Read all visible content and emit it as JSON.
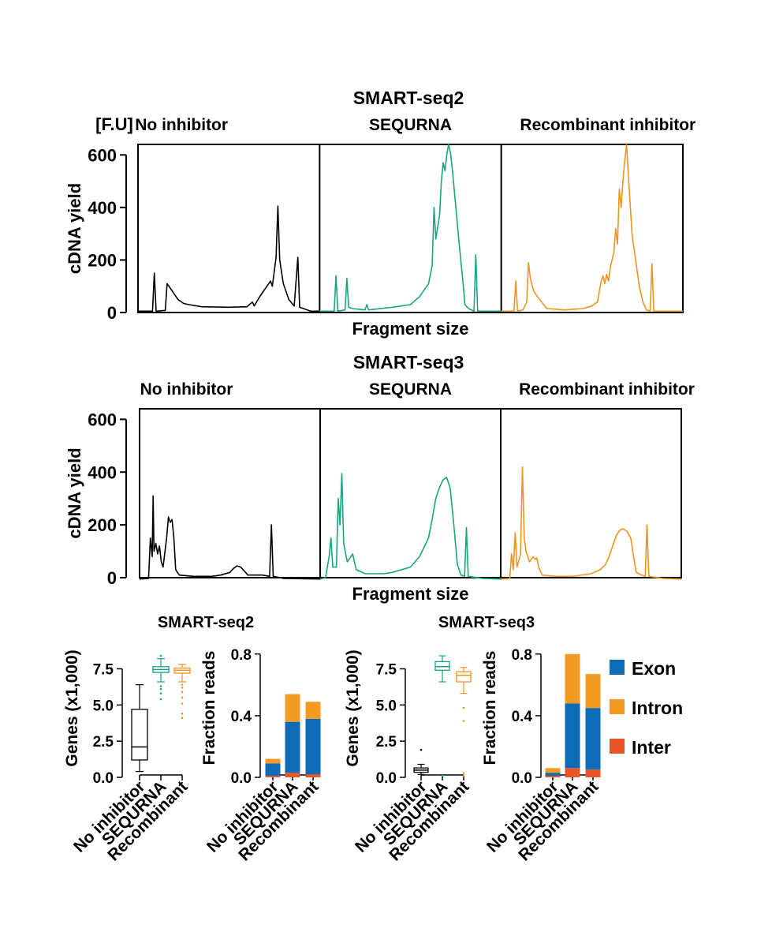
{
  "figure": {
    "top_title": "SMART-seq2",
    "middle_title": "SMART-seq3",
    "fu_label": "[F.U]"
  },
  "colors": {
    "No inhibitor": "#000000",
    "SEQURNA": "#1aa57f",
    "Recombinant": "#f0941e",
    "Exon": "#0e6cb6",
    "Intron": "#f39a22",
    "Inter": "#e8562a"
  },
  "chart_data": [
    {
      "id": "ss2-trace",
      "type": "line",
      "title": "SMART-seq2",
      "xlabel": "Fragment size",
      "ylabel": "cDNA yield",
      "yunit": "[F.U]",
      "ylim": [
        0,
        640
      ],
      "yticks": [
        0,
        200,
        400,
        600
      ],
      "xlim": [
        0,
        100
      ],
      "panels": [
        {
          "label": "No inhibitor",
          "color_key": "No inhibitor",
          "points": [
            [
              0,
              5
            ],
            [
              8,
              5
            ],
            [
              9,
              150
            ],
            [
              10,
              5
            ],
            [
              15,
              8
            ],
            [
              16,
              110
            ],
            [
              18,
              90
            ],
            [
              22,
              50
            ],
            [
              25,
              35
            ],
            [
              28,
              30
            ],
            [
              35,
              22
            ],
            [
              50,
              20
            ],
            [
              60,
              22
            ],
            [
              63,
              40
            ],
            [
              64,
              25
            ],
            [
              67,
              60
            ],
            [
              70,
              90
            ],
            [
              73,
              120
            ],
            [
              74,
              100
            ],
            [
              76,
              210
            ],
            [
              77,
              405
            ],
            [
              78,
              200
            ],
            [
              80,
              110
            ],
            [
              83,
              50
            ],
            [
              86,
              25
            ],
            [
              88,
              210
            ],
            [
              89,
              20
            ],
            [
              95,
              5
            ],
            [
              100,
              5
            ]
          ]
        },
        {
          "label": "SEQURNA",
          "color_key": "SEQURNA",
          "points": [
            [
              0,
              5
            ],
            [
              8,
              5
            ],
            [
              9,
              140
            ],
            [
              10,
              5
            ],
            [
              14,
              10
            ],
            [
              15,
              130
            ],
            [
              16,
              20
            ],
            [
              18,
              15
            ],
            [
              25,
              10
            ],
            [
              26,
              30
            ],
            [
              27,
              10
            ],
            [
              40,
              20
            ],
            [
              50,
              30
            ],
            [
              55,
              60
            ],
            [
              60,
              110
            ],
            [
              62,
              180
            ],
            [
              63,
              400
            ],
            [
              64,
              280
            ],
            [
              66,
              370
            ],
            [
              67,
              500
            ],
            [
              68,
              570
            ],
            [
              69,
              540
            ],
            [
              70,
              600
            ],
            [
              71,
              640
            ],
            [
              72,
              610
            ],
            [
              73,
              550
            ],
            [
              75,
              400
            ],
            [
              77,
              250
            ],
            [
              79,
              110
            ],
            [
              80,
              30
            ],
            [
              82,
              15
            ],
            [
              85,
              5
            ],
            [
              86,
              220
            ],
            [
              87,
              5
            ],
            [
              100,
              5
            ]
          ]
        },
        {
          "label": "Recombinant inhibitor",
          "color_key": "Recombinant",
          "points": [
            [
              0,
              5
            ],
            [
              7,
              5
            ],
            [
              8,
              120
            ],
            [
              9,
              5
            ],
            [
              12,
              10
            ],
            [
              14,
              40
            ],
            [
              15,
              190
            ],
            [
              16,
              130
            ],
            [
              18,
              80
            ],
            [
              20,
              60
            ],
            [
              25,
              15
            ],
            [
              35,
              10
            ],
            [
              45,
              15
            ],
            [
              50,
              25
            ],
            [
              53,
              40
            ],
            [
              55,
              120
            ],
            [
              56,
              140
            ],
            [
              57,
              110
            ],
            [
              58,
              145
            ],
            [
              59,
              120
            ],
            [
              60,
              170
            ],
            [
              62,
              230
            ],
            [
              63,
              320
            ],
            [
              64,
              260
            ],
            [
              65,
              470
            ],
            [
              66,
              400
            ],
            [
              67,
              500
            ],
            [
              68,
              580
            ],
            [
              69,
              640
            ],
            [
              70,
              520
            ],
            [
              72,
              300
            ],
            [
              74,
              200
            ],
            [
              76,
              100
            ],
            [
              78,
              40
            ],
            [
              80,
              10
            ],
            [
              82,
              5
            ],
            [
              83,
              185
            ],
            [
              84,
              5
            ],
            [
              100,
              5
            ]
          ]
        }
      ]
    },
    {
      "id": "ss3-trace",
      "type": "line",
      "title": "SMART-seq3",
      "xlabel": "Fragment size",
      "ylabel": "cDNA yield",
      "ylim": [
        0,
        640
      ],
      "yticks": [
        0,
        200,
        400,
        600
      ],
      "xlim": [
        0,
        100
      ],
      "panels": [
        {
          "label": "No inhibitor",
          "color_key": "No inhibitor",
          "points": [
            [
              0,
              -5
            ],
            [
              5,
              -3
            ],
            [
              6,
              150
            ],
            [
              7,
              80
            ],
            [
              7.5,
              310
            ],
            [
              8,
              100
            ],
            [
              9,
              130
            ],
            [
              10,
              90
            ],
            [
              11,
              120
            ],
            [
              12,
              60
            ],
            [
              13,
              40
            ],
            [
              15,
              150
            ],
            [
              16,
              230
            ],
            [
              17,
              210
            ],
            [
              18,
              220
            ],
            [
              19,
              150
            ],
            [
              20,
              30
            ],
            [
              22,
              10
            ],
            [
              30,
              5
            ],
            [
              40,
              5
            ],
            [
              45,
              10
            ],
            [
              50,
              20
            ],
            [
              52,
              35
            ],
            [
              54,
              45
            ],
            [
              56,
              40
            ],
            [
              58,
              25
            ],
            [
              60,
              10
            ],
            [
              68,
              10
            ],
            [
              72,
              5
            ],
            [
              73,
              200
            ],
            [
              74,
              5
            ],
            [
              80,
              -3
            ],
            [
              100,
              -5
            ]
          ]
        },
        {
          "label": "SEQURNA",
          "color_key": "SEQURNA",
          "points": [
            [
              0,
              -5
            ],
            [
              3,
              0
            ],
            [
              5,
              80
            ],
            [
              6,
              150
            ],
            [
              7,
              40
            ],
            [
              9,
              40
            ],
            [
              10,
              300
            ],
            [
              11,
              200
            ],
            [
              12,
              395
            ],
            [
              13,
              130
            ],
            [
              15,
              60
            ],
            [
              18,
              90
            ],
            [
              20,
              30
            ],
            [
              25,
              15
            ],
            [
              35,
              15
            ],
            [
              40,
              20
            ],
            [
              50,
              40
            ],
            [
              55,
              80
            ],
            [
              60,
              150
            ],
            [
              62,
              220
            ],
            [
              64,
              300
            ],
            [
              66,
              340
            ],
            [
              68,
              370
            ],
            [
              70,
              380
            ],
            [
              72,
              340
            ],
            [
              74,
              200
            ],
            [
              76,
              50
            ],
            [
              78,
              10
            ],
            [
              80,
              5
            ],
            [
              81,
              190
            ],
            [
              82,
              5
            ],
            [
              90,
              -3
            ],
            [
              100,
              -5
            ]
          ]
        },
        {
          "label": "Recombinant inhibitor",
          "color_key": "Recombinant",
          "points": [
            [
              0,
              -5
            ],
            [
              5,
              -3
            ],
            [
              6,
              90
            ],
            [
              7,
              30
            ],
            [
              8,
              170
            ],
            [
              9,
              40
            ],
            [
              11,
              90
            ],
            [
              12,
              420
            ],
            [
              13,
              150
            ],
            [
              14,
              100
            ],
            [
              16,
              60
            ],
            [
              18,
              80
            ],
            [
              19,
              70
            ],
            [
              20,
              75
            ],
            [
              21,
              40
            ],
            [
              23,
              10
            ],
            [
              30,
              5
            ],
            [
              40,
              5
            ],
            [
              50,
              15
            ],
            [
              55,
              30
            ],
            [
              58,
              50
            ],
            [
              60,
              80
            ],
            [
              62,
              120
            ],
            [
              64,
              160
            ],
            [
              66,
              180
            ],
            [
              68,
              185
            ],
            [
              70,
              175
            ],
            [
              72,
              150
            ],
            [
              74,
              60
            ],
            [
              75,
              20
            ],
            [
              78,
              10
            ],
            [
              80,
              5
            ],
            [
              81,
              200
            ],
            [
              82,
              5
            ],
            [
              90,
              -3
            ],
            [
              100,
              -5
            ]
          ]
        }
      ]
    },
    {
      "id": "ss2-genes",
      "type": "box",
      "title": "SMART-seq2",
      "ylabel": "Genes (x1,000)",
      "ylim": [
        0,
        9
      ],
      "yticks": [
        "0.0",
        "2.5",
        "5.0",
        "7.5"
      ],
      "categories": [
        "No inhibitor",
        "SEQURNA",
        "Recombinant"
      ],
      "boxes": [
        {
          "min": 0.4,
          "q1": 1.2,
          "median": 2.1,
          "q3": 4.7,
          "max": 6.4,
          "outliers": []
        },
        {
          "min": 6.6,
          "q1": 7.25,
          "median": 7.45,
          "q3": 7.65,
          "max": 8.2,
          "outliers": [
            5.4,
            5.8,
            6.1,
            6.3,
            8.4
          ]
        },
        {
          "min": 6.6,
          "q1": 7.2,
          "median": 7.4,
          "q3": 7.55,
          "max": 7.8,
          "outliers": [
            4.1,
            4.4,
            5.1,
            5.5,
            5.9,
            6.2,
            6.4
          ]
        }
      ]
    },
    {
      "id": "ss2-frac",
      "type": "stacked-bar",
      "ylabel": "Fraction reads",
      "ylim": [
        0,
        0.85
      ],
      "yticks": [
        "0.0",
        "0.4",
        "0.8"
      ],
      "categories": [
        "No inhibitor",
        "SEQURNA",
        "Recombinant"
      ],
      "series": [
        {
          "name": "Inter",
          "values": [
            0.01,
            0.03,
            0.02
          ]
        },
        {
          "name": "Exon",
          "values": [
            0.08,
            0.33,
            0.36
          ]
        },
        {
          "name": "Intron",
          "values": [
            0.03,
            0.18,
            0.11
          ]
        }
      ]
    },
    {
      "id": "ss3-genes",
      "type": "box",
      "title": "SMART-seq3",
      "ylabel": "Genes (x1,000)",
      "ylim": [
        0,
        9
      ],
      "yticks": [
        "0.0",
        "2.5",
        "5.0",
        "7.5"
      ],
      "categories": [
        "No inhibitor",
        "SEQURNA",
        "Recombinant"
      ],
      "boxes": [
        {
          "min": 0.2,
          "q1": 0.35,
          "median": 0.5,
          "q3": 0.65,
          "max": 0.9,
          "outliers": [
            1.9
          ]
        },
        {
          "min": 6.6,
          "q1": 7.4,
          "median": 7.65,
          "q3": 8.0,
          "max": 8.4,
          "outliers": [
            0.1
          ]
        },
        {
          "min": 5.8,
          "q1": 6.6,
          "median": 7.05,
          "q3": 7.3,
          "max": 7.6,
          "outliers": [
            0.1,
            0.3,
            3.9,
            4.8
          ]
        }
      ]
    },
    {
      "id": "ss3-frac",
      "type": "stacked-bar",
      "ylabel": "Fraction reads",
      "ylim": [
        0,
        0.85
      ],
      "yticks": [
        "0.0",
        "0.4",
        "0.8"
      ],
      "categories": [
        "No inhibitor",
        "SEQURNA",
        "Recombinant"
      ],
      "series": [
        {
          "name": "Inter",
          "values": [
            0.01,
            0.06,
            0.05
          ]
        },
        {
          "name": "Exon",
          "values": [
            0.02,
            0.42,
            0.4
          ]
        },
        {
          "name": "Intron",
          "values": [
            0.03,
            0.32,
            0.22
          ]
        }
      ]
    }
  ],
  "legend": {
    "position": "right",
    "items": [
      {
        "label": "Exon",
        "color_key": "Exon"
      },
      {
        "label": "Intron",
        "color_key": "Intron"
      },
      {
        "label": "Inter",
        "color_key": "Inter"
      }
    ]
  }
}
